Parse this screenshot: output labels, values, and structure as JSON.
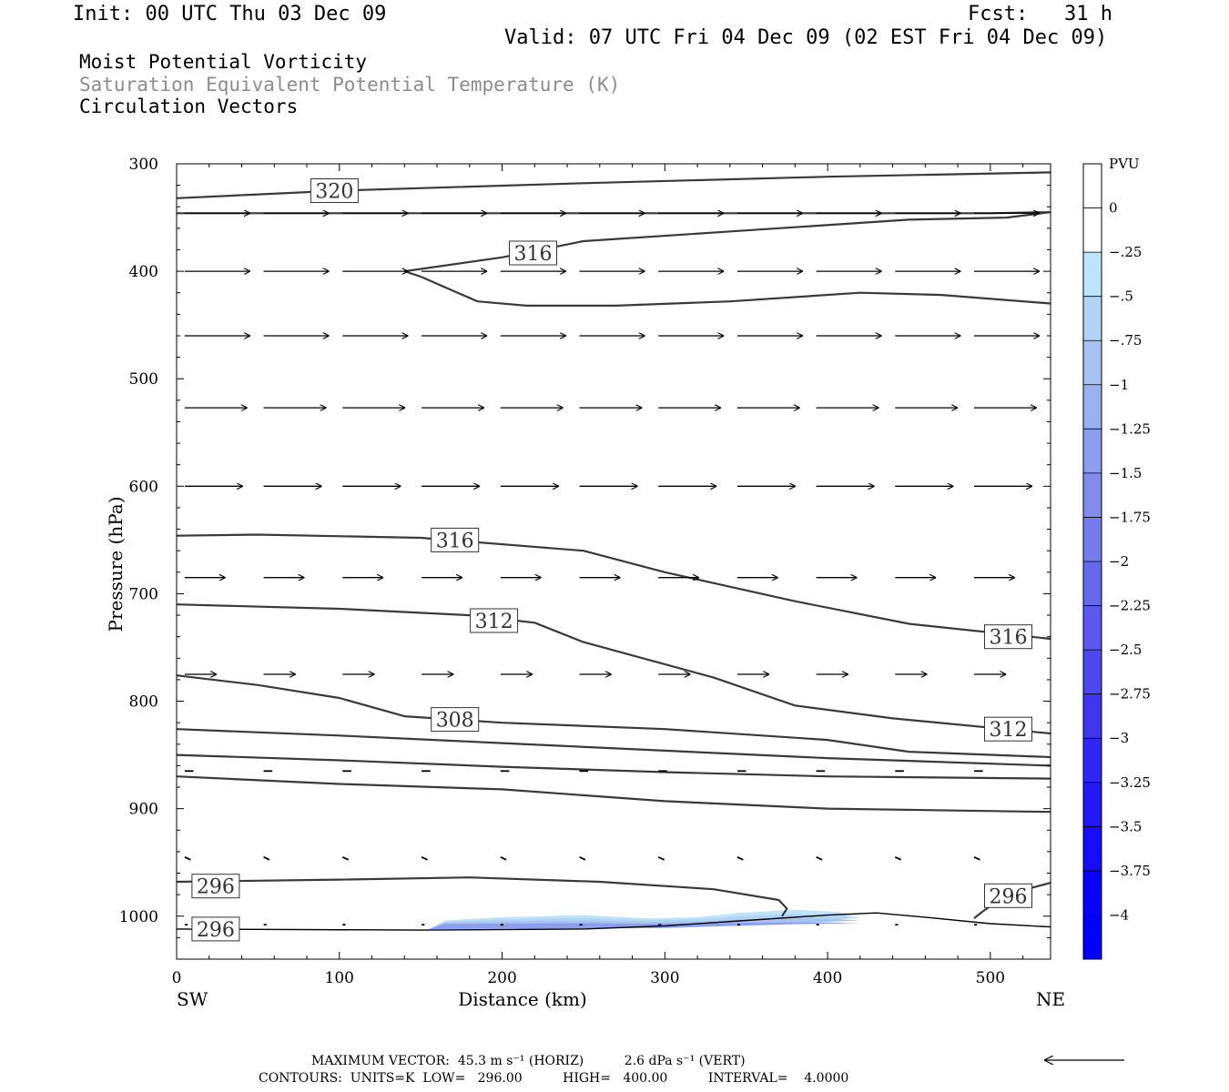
{
  "header": {
    "init": "Init: 00 UTC Thu 03 Dec 09",
    "fcst": "Fcst:   31 h",
    "valid": "Valid: 07 UTC Fri 04 Dec 09 (02 EST Fri 04 Dec 09)",
    "field1": "Moist Potential Vorticity",
    "field2": "Saturation Equivalent Potential Temperature (K)",
    "field3": "Circulation Vectors"
  },
  "colors": {
    "contour": "#3a3a3a",
    "axis": "#000000",
    "field2_text": "#8c8c8c"
  },
  "chart_data": {
    "type": "cross-section",
    "xlabel": "Distance (km)",
    "ylabel": "Pressure (hPa)",
    "xlim": [
      0,
      537
    ],
    "ylim": [
      1040,
      300
    ],
    "x_ticks": [
      0,
      100,
      200,
      300,
      400,
      500
    ],
    "x_tick_labels": [
      "0",
      "100",
      "200",
      "300",
      "400",
      "500"
    ],
    "y_ticks": [
      300,
      400,
      500,
      600,
      700,
      800,
      900,
      1000
    ],
    "y_tick_labels": [
      "300",
      "400",
      "500",
      "600",
      "700",
      "800",
      "900",
      "1000"
    ],
    "endpoints": {
      "left": "SW",
      "right": "NE"
    },
    "contours": [
      {
        "points": [
          [
            0,
            332
          ],
          [
            100,
            325
          ],
          [
            250,
            318
          ],
          [
            400,
            312
          ],
          [
            537,
            308
          ]
        ]
      },
      {
        "points": [
          [
            0,
            346
          ],
          [
            100,
            346
          ],
          [
            300,
            346
          ],
          [
            500,
            346
          ],
          [
            537,
            345
          ]
        ]
      },
      {
        "points": [
          [
            140,
            400
          ],
          [
            200,
            387
          ],
          [
            250,
            372
          ],
          [
            350,
            362
          ],
          [
            450,
            352
          ],
          [
            510,
            350
          ],
          [
            537,
            345
          ]
        ]
      },
      {
        "points": [
          [
            140,
            400
          ],
          [
            150,
            405
          ],
          [
            165,
            415
          ],
          [
            185,
            428
          ],
          [
            215,
            432
          ],
          [
            270,
            432
          ],
          [
            340,
            428
          ],
          [
            420,
            420
          ],
          [
            470,
            422
          ],
          [
            537,
            430
          ]
        ]
      },
      {
        "points": [
          [
            0,
            646
          ],
          [
            50,
            645
          ],
          [
            150,
            648
          ],
          [
            250,
            660
          ],
          [
            300,
            680
          ],
          [
            380,
            707
          ],
          [
            450,
            728
          ],
          [
            537,
            742
          ]
        ]
      },
      {
        "points": [
          [
            0,
            710
          ],
          [
            100,
            714
          ],
          [
            180,
            720
          ],
          [
            220,
            727
          ],
          [
            250,
            745
          ],
          [
            330,
            778
          ],
          [
            380,
            804
          ],
          [
            440,
            816
          ],
          [
            537,
            830
          ]
        ]
      },
      {
        "points": [
          [
            0,
            776
          ],
          [
            50,
            785
          ],
          [
            100,
            797
          ],
          [
            140,
            814
          ],
          [
            200,
            820
          ],
          [
            300,
            826
          ],
          [
            400,
            836
          ],
          [
            450,
            847
          ],
          [
            537,
            852
          ]
        ]
      },
      {
        "points": [
          [
            0,
            826
          ],
          [
            100,
            832
          ],
          [
            200,
            839
          ],
          [
            300,
            846
          ],
          [
            400,
            853
          ],
          [
            537,
            860
          ]
        ]
      },
      {
        "points": [
          [
            0,
            850
          ],
          [
            100,
            855
          ],
          [
            200,
            861
          ],
          [
            300,
            866
          ],
          [
            400,
            870
          ],
          [
            537,
            872
          ]
        ]
      },
      {
        "points": [
          [
            0,
            870
          ],
          [
            100,
            877
          ],
          [
            200,
            882
          ],
          [
            300,
            893
          ],
          [
            400,
            900
          ],
          [
            537,
            903
          ]
        ]
      },
      {
        "points": [
          [
            0,
            968
          ],
          [
            100,
            966
          ],
          [
            180,
            964
          ],
          [
            260,
            968
          ],
          [
            330,
            975
          ],
          [
            370,
            985
          ],
          [
            375,
            993
          ],
          [
            372,
            1000
          ]
        ]
      },
      {
        "points": [
          [
            490,
            1002
          ],
          [
            495,
            996
          ],
          [
            510,
            980
          ],
          [
            537,
            969
          ]
        ]
      }
    ],
    "contour_labels": [
      {
        "text": "320",
        "x": 97,
        "y": 325
      },
      {
        "text": "316",
        "x": 219,
        "y": 383
      },
      {
        "text": "316",
        "x": 171,
        "y": 650
      },
      {
        "text": "312",
        "x": 195,
        "y": 725
      },
      {
        "text": "316",
        "x": 511,
        "y": 740
      },
      {
        "text": "308",
        "x": 171,
        "y": 817
      },
      {
        "text": "312",
        "x": 511,
        "y": 826
      },
      {
        "text": "296",
        "x": 24,
        "y": 972
      },
      {
        "text": "296",
        "x": 511,
        "y": 981
      },
      {
        "text": "296",
        "x": 24,
        "y": 1012
      }
    ],
    "terrain": [
      [
        0,
        1012
      ],
      [
        150,
        1013
      ],
      [
        250,
        1012
      ],
      [
        300,
        1009
      ],
      [
        350,
        1004
      ],
      [
        400,
        999
      ],
      [
        430,
        997
      ],
      [
        460,
        1001
      ],
      [
        500,
        1007
      ],
      [
        537,
        1010
      ]
    ],
    "pv_region": [
      [
        155,
        1012
      ],
      [
        165,
        1004
      ],
      [
        200,
        1001
      ],
      [
        250,
        999
      ],
      [
        290,
        1002
      ],
      [
        320,
        1001
      ],
      [
        345,
        997
      ],
      [
        380,
        994
      ],
      [
        405,
        996
      ],
      [
        420,
        999
      ],
      [
        380,
        1005
      ],
      [
        300,
        1011
      ],
      [
        155,
        1012
      ]
    ],
    "pv_colorbar": {
      "unit": "PVU",
      "levels": [
        "PVU",
        "0",
        "-.25",
        "-.5",
        "-.75",
        "-1",
        "-1.25",
        "-1.5",
        "-1.75",
        "-2",
        "-2.25",
        "-2.5",
        "-2.75",
        "-3",
        "-3.25",
        "-3.5",
        "-3.75",
        "-4"
      ],
      "colors": [
        "#ffffff",
        "#ffffff",
        "#bde4fa",
        "#b3d3f6",
        "#a7c1f3",
        "#9bb0f0",
        "#8e9eee",
        "#818ced",
        "#747bec",
        "#6769ec",
        "#5a58ed",
        "#4c47ee",
        "#3e36f0",
        "#3027f2",
        "#2319f4",
        "#160cf6",
        "#0902f8",
        "#0000fa"
      ]
    },
    "vectors": {
      "spacing_km": 48.5,
      "rows": [
        {
          "p": 346,
          "count": 11,
          "u": 45,
          "w": 0
        },
        {
          "p": 400,
          "count": 11,
          "u": 45,
          "w": 0
        },
        {
          "p": 460,
          "count": 11,
          "u": 45,
          "w": 0
        },
        {
          "p": 527,
          "count": 11,
          "u": 43,
          "w": 0
        },
        {
          "p": 600,
          "count": 11,
          "u": 40,
          "w": 0
        },
        {
          "p": 685,
          "count": 11,
          "u": 28,
          "w": 0
        },
        {
          "p": 775,
          "count": 11,
          "u": 22,
          "w": 0
        },
        {
          "p": 865,
          "count": 11,
          "u": 6,
          "w": 0
        },
        {
          "p": 945,
          "count": 11,
          "u": 4,
          "w": 0.1
        },
        {
          "p": 1008,
          "count": 11,
          "u": 2,
          "w": 0
        }
      ]
    }
  },
  "footer": {
    "max_vector": "MAXIMUM VECTOR:  45.3 m s⁻¹ (HORIZ)          2.6 dPa s⁻¹ (VERT)",
    "contours": "CONTOURS:  UNITS=K  LOW=   296.00          HIGH=   400.00          INTERVAL=    4.0000"
  }
}
